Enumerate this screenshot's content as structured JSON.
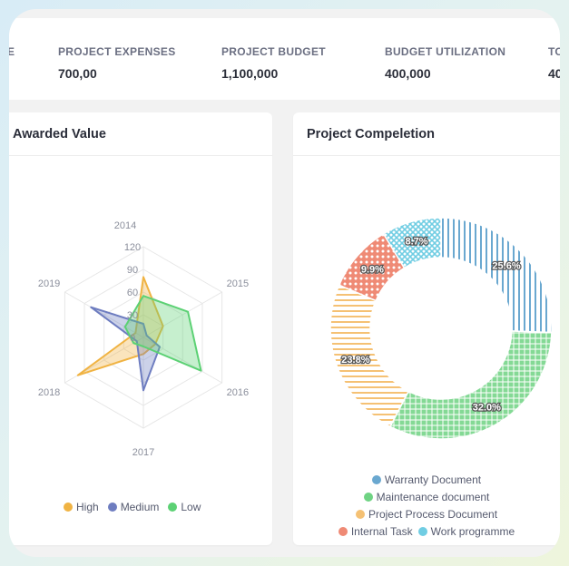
{
  "stats": [
    {
      "label": "E",
      "value": ""
    },
    {
      "label": "PROJECT EXPENSES",
      "value": "700,00"
    },
    {
      "label": "PROJECT BUDGET",
      "value": "1,100,000"
    },
    {
      "label": "BUDGET UTILIZATION",
      "value": "400,000"
    },
    {
      "label": "TO",
      "value": "40"
    }
  ],
  "radar_card": {
    "title": "Awarded Value"
  },
  "donut_card": {
    "title": "Project Compeletion"
  },
  "chart_data": [
    {
      "type": "radar",
      "categories": [
        "2014",
        "2015",
        "2016",
        "2017",
        "2018",
        "2019"
      ],
      "rlim": [
        0,
        120
      ],
      "ticks": [
        "0",
        "30",
        "60",
        "90",
        "120"
      ],
      "series": [
        {
          "name": "High",
          "color": "#f0b343",
          "values": [
            80,
            30,
            18,
            22,
            100,
            12
          ]
        },
        {
          "name": "Medium",
          "color": "#6e7dc0",
          "values": [
            18,
            5,
            25,
            70,
            10,
            80
          ]
        },
        {
          "name": "Low",
          "color": "#5cd174",
          "values": [
            55,
            68,
            88,
            12,
            15,
            28
          ]
        }
      ],
      "legend": "bottom"
    },
    {
      "type": "pie",
      "donut": true,
      "slices": [
        {
          "name": "Warranty Document",
          "value": 25.6,
          "label": "25.6%",
          "color": "#6aa8d0"
        },
        {
          "name": "Maintenance document",
          "value": 32.0,
          "label": "32.0%",
          "color": "#6fd383"
        },
        {
          "name": "Project Process Document",
          "value": 23.8,
          "label": "23.8%",
          "color": "#f5c174"
        },
        {
          "name": "Internal Task",
          "value": 9.9,
          "label": "9.9%",
          "color": "#ef8a75"
        },
        {
          "name": "Work programme",
          "value": 8.7,
          "label": "8.7%",
          "color": "#70cde3"
        }
      ],
      "legend": "bottom"
    }
  ]
}
